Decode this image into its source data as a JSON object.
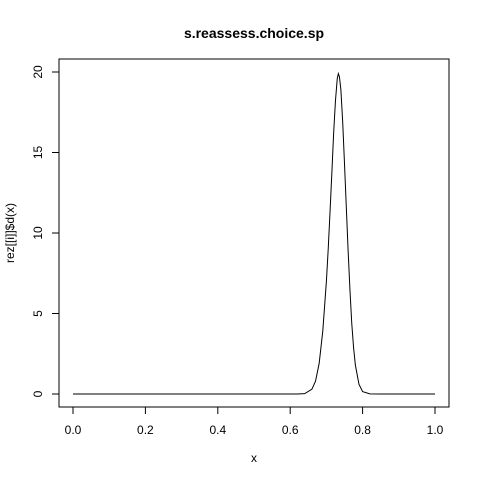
{
  "chart_data": {
    "type": "line",
    "title": "s.reassess.choice.sp",
    "xlabel": "x",
    "ylabel": "rez[[i]]$d(x)",
    "xlim": [
      0,
      1
    ],
    "ylim": [
      0,
      20
    ],
    "x_ticks": [
      "0.0",
      "0.2",
      "0.4",
      "0.6",
      "0.8",
      "1.0"
    ],
    "y_ticks": [
      "0",
      "5",
      "10",
      "15",
      "20"
    ],
    "grid": false,
    "legend": "none",
    "line_color": "#000000",
    "series": [
      {
        "x": [
          0.0,
          0.05,
          0.1,
          0.15,
          0.2,
          0.25,
          0.3,
          0.35,
          0.4,
          0.45,
          0.5,
          0.55,
          0.6,
          0.62,
          0.64,
          0.66,
          0.67,
          0.68,
          0.69,
          0.7,
          0.705,
          0.71,
          0.715,
          0.72,
          0.725,
          0.73,
          0.733,
          0.736,
          0.74,
          0.745,
          0.75,
          0.755,
          0.76,
          0.765,
          0.77,
          0.775,
          0.78,
          0.79,
          0.8,
          0.82,
          0.85,
          0.9,
          0.95,
          1.0
        ],
        "y": [
          0,
          0,
          0,
          0,
          0,
          0,
          0,
          0,
          0,
          0,
          0,
          0,
          0,
          0,
          0.02,
          0.3,
          0.8,
          1.9,
          3.9,
          7.0,
          9.0,
          11.3,
          13.7,
          16.2,
          18.2,
          19.6,
          19.9,
          19.7,
          18.9,
          16.9,
          14.3,
          11.6,
          8.9,
          6.5,
          4.4,
          2.9,
          1.8,
          0.6,
          0.15,
          0.01,
          0,
          0,
          0,
          0
        ]
      }
    ]
  }
}
